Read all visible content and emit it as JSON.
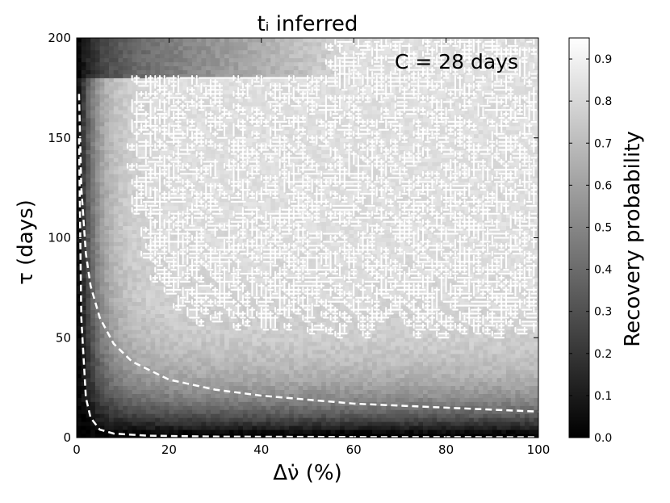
{
  "chart_data": {
    "type": "heatmap",
    "title": "t_i inferred",
    "title_display": "tᵢ inferred",
    "xlabel": "Δν̇ (%)",
    "ylabel": "τ (days)",
    "xlim": [
      0,
      100
    ],
    "ylim": [
      0,
      200
    ],
    "xticks": [
      "0",
      "20",
      "40",
      "60",
      "80",
      "100"
    ],
    "yticks": [
      "0",
      "50",
      "100",
      "150",
      "200"
    ],
    "annotation": "C = 28 days",
    "colorbar": {
      "label": "Recovery probability",
      "range": [
        0.0,
        0.95
      ],
      "ticks": [
        "0.0",
        "0.1",
        "0.2",
        "0.3",
        "0.4",
        "0.5",
        "0.6",
        "0.7",
        "0.8",
        "0.9"
      ],
      "colormap": "gray"
    },
    "grid": false,
    "z_description_points": [
      {
        "x": 2,
        "y": 10,
        "p": 0.0
      },
      {
        "x": 5,
        "y": 100,
        "p": 0.15
      },
      {
        "x": 50,
        "y": 20,
        "p": 0.05
      },
      {
        "x": 50,
        "y": 50,
        "p": 0.35
      },
      {
        "x": 50,
        "y": 100,
        "p": 0.75
      },
      {
        "x": 50,
        "y": 150,
        "p": 0.8
      },
      {
        "x": 90,
        "y": 150,
        "p": 0.78
      },
      {
        "x": 90,
        "y": 60,
        "p": 0.6
      },
      {
        "x": 20,
        "y": 190,
        "p": 0.3
      },
      {
        "x": 60,
        "y": 190,
        "p": 0.75
      }
    ],
    "contour_level": 0.8,
    "dashed_curves": [
      {
        "name": "curve-upper",
        "x": [
          0.5,
          1,
          2,
          3,
          5,
          8,
          12,
          20,
          30,
          40,
          50,
          60,
          70,
          80,
          90,
          100
        ],
        "y": [
          172,
          125,
          92,
          76,
          60,
          47,
          38,
          29,
          24,
          21,
          19,
          17,
          16,
          15,
          14,
          13
        ]
      },
      {
        "name": "curve-lower",
        "x": [
          0.5,
          1,
          2,
          3,
          5,
          8,
          15,
          30,
          60,
          100
        ],
        "y": [
          150,
          60,
          20,
          10,
          4,
          2,
          1,
          0.5,
          0.3,
          0.2
        ]
      }
    ]
  }
}
